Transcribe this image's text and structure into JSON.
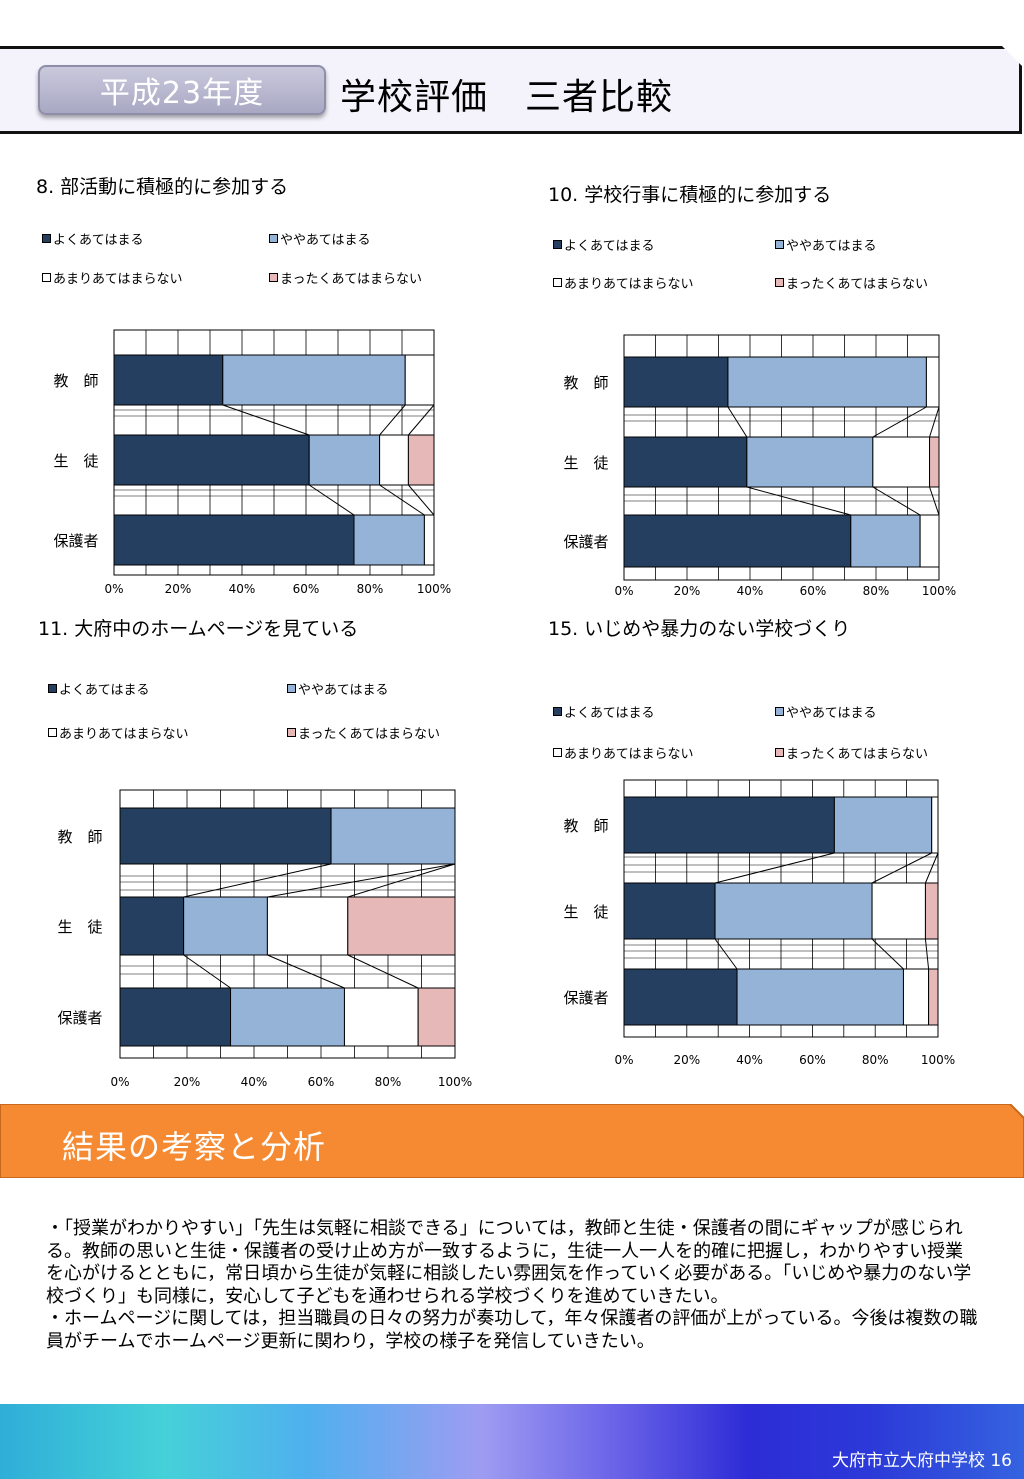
{
  "header": {
    "year": "平成23年度",
    "title": "学校評価　三者比較"
  },
  "legend_labels": [
    "よくあてはまる",
    "ややあてはまる",
    "あまりあてはまらない",
    "まったくあてはまらない"
  ],
  "colors": {
    "よくあてはまる": "#243f60",
    "ややあてはまる": "#95b3d7",
    "あまりあてはまらない": "#ffffff",
    "まったくあてはまらない": "#e6b9b8",
    "accent_orange": "#f58a33"
  },
  "chart_data": [
    {
      "title": "8. 部活動に積極的に参加する",
      "type": "bar",
      "orientation": "horizontal-stacked-100",
      "categories": [
        "教　師",
        "生　徒",
        "保護者"
      ],
      "series": [
        {
          "name": "よくあてはまる",
          "values": [
            34,
            61,
            75
          ]
        },
        {
          "name": "ややあてはまる",
          "values": [
            57,
            22,
            22
          ]
        },
        {
          "name": "あまりあてはまらない",
          "values": [
            9,
            9,
            3
          ]
        },
        {
          "name": "まったくあてはまらない",
          "values": [
            0,
            8,
            0
          ]
        }
      ],
      "x_ticks": [
        "0%",
        "20%",
        "40%",
        "60%",
        "80%",
        "100%"
      ],
      "xlim": [
        0,
        100
      ]
    },
    {
      "title": "10. 学校行事に積極的に参加する",
      "type": "bar",
      "orientation": "horizontal-stacked-100",
      "categories": [
        "教　師",
        "生　徒",
        "保護者"
      ],
      "series": [
        {
          "name": "よくあてはまる",
          "values": [
            33,
            39,
            72
          ]
        },
        {
          "name": "ややあてはまる",
          "values": [
            63,
            40,
            22
          ]
        },
        {
          "name": "あまりあてはまらない",
          "values": [
            4,
            18,
            6
          ]
        },
        {
          "name": "まったくあてはまらない",
          "values": [
            0,
            3,
            0
          ]
        }
      ],
      "x_ticks": [
        "0%",
        "20%",
        "40%",
        "60%",
        "80%",
        "100%"
      ],
      "xlim": [
        0,
        100
      ]
    },
    {
      "title": "11. 大府中のホームページを見ている",
      "type": "bar",
      "orientation": "horizontal-stacked-100",
      "categories": [
        "教　師",
        "生　徒",
        "保護者"
      ],
      "series": [
        {
          "name": "よくあてはまる",
          "values": [
            63,
            19,
            33
          ]
        },
        {
          "name": "ややあてはまる",
          "values": [
            37,
            25,
            34
          ]
        },
        {
          "name": "あまりあてはまらない",
          "values": [
            0,
            24,
            22
          ]
        },
        {
          "name": "まったくあてはまらない",
          "values": [
            0,
            32,
            11
          ]
        }
      ],
      "x_ticks": [
        "0%",
        "20%",
        "40%",
        "60%",
        "80%",
        "100%"
      ],
      "xlim": [
        0,
        100
      ]
    },
    {
      "title": "15. いじめや暴力のない学校づくり",
      "type": "bar",
      "orientation": "horizontal-stacked-100",
      "categories": [
        "教　師",
        "生　徒",
        "保護者"
      ],
      "series": [
        {
          "name": "よくあてはまる",
          "values": [
            67,
            29,
            36
          ]
        },
        {
          "name": "ややあてはまる",
          "values": [
            31,
            50,
            53
          ]
        },
        {
          "name": "あまりあてはまらない",
          "values": [
            2,
            17,
            8
          ]
        },
        {
          "name": "まったくあてはまらない",
          "values": [
            0,
            4,
            3
          ]
        }
      ],
      "x_ticks": [
        "0%",
        "20%",
        "40%",
        "60%",
        "80%",
        "100%"
      ],
      "xlim": [
        0,
        100
      ]
    }
  ],
  "section": {
    "title": "結果の考察と分析"
  },
  "analysis": {
    "paragraphs": [
      "・「授業がわかりやすい」「先生は気軽に相談できる」については，教師と生徒・保護者の間にギャップが感じられる。教師の思いと生徒・保護者の受け止め方が一致するように，生徒一人一人を的確に把握し，わかりやすい授業を心がけるとともに，常日頃から生徒が気軽に相談したい雰囲気を作っていく必要がある。「いじめや暴力のない学校づくり」も同様に，安心して子どもを通わせられる学校づくりを進めていきたい。",
      "・ホームページに関しては，担当職員の日々の努力が奏功して，年々保護者の評価が上がっている。今後は複数の職員がチームでホームページ更新に関わり，学校の様子を発信していきたい。"
    ]
  },
  "footer": {
    "school": "大府市立大府中学校",
    "page": "16"
  }
}
